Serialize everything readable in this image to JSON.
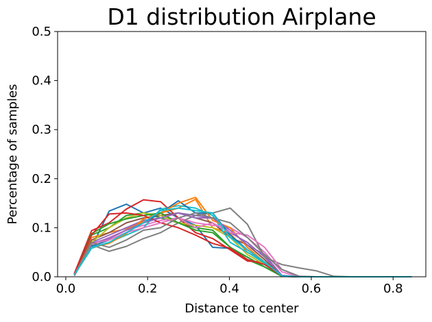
{
  "chart_data": {
    "type": "line",
    "title": "D1 distribution Airplane",
    "xlabel": "Distance to center",
    "ylabel": "Percentage of samples",
    "xlim": [
      -0.02,
      0.88
    ],
    "ylim": [
      0,
      0.5
    ],
    "xticks": [
      0.0,
      0.2,
      0.4,
      0.6,
      0.8
    ],
    "xtick_labels": [
      "0.0",
      "0.2",
      "0.4",
      "0.6",
      "0.8"
    ],
    "yticks": [
      0.0,
      0.1,
      0.2,
      0.3,
      0.4,
      0.5
    ],
    "ytick_labels": [
      "0.0",
      "0.1",
      "0.2",
      "0.3",
      "0.4",
      "0.5"
    ],
    "grid": false,
    "legend": false,
    "x": [
      0.021,
      0.063,
      0.106,
      0.148,
      0.19,
      0.232,
      0.275,
      0.317,
      0.359,
      0.402,
      0.444,
      0.486,
      0.528,
      0.571,
      0.613,
      0.655,
      0.697,
      0.74,
      0.782,
      0.824,
      0.845
    ],
    "series": [
      {
        "color": "#1f77b4",
        "values": [
          0.005,
          0.06,
          0.134,
          0.148,
          0.13,
          0.14,
          0.12,
          0.105,
          0.06,
          0.058,
          0.04,
          0.02,
          0.002,
          0,
          0,
          0,
          0,
          0,
          0,
          0,
          0
        ]
      },
      {
        "color": "#ff7f0e",
        "values": [
          0.004,
          0.08,
          0.09,
          0.098,
          0.112,
          0.13,
          0.14,
          0.158,
          0.1,
          0.088,
          0.05,
          0.03,
          0.002,
          0,
          0,
          0,
          0,
          0,
          0,
          0,
          0
        ]
      },
      {
        "color": "#2ca02c",
        "values": [
          0.006,
          0.085,
          0.1,
          0.125,
          0.13,
          0.12,
          0.11,
          0.1,
          0.095,
          0.06,
          0.035,
          0.02,
          0.001,
          0,
          0,
          0,
          0,
          0,
          0,
          0,
          0
        ]
      },
      {
        "color": "#d62728",
        "values": [
          0.007,
          0.094,
          0.11,
          0.138,
          0.157,
          0.153,
          0.12,
          0.09,
          0.078,
          0.055,
          0.032,
          0.03,
          0.002,
          0,
          0,
          0,
          0,
          0,
          0,
          0,
          0
        ]
      },
      {
        "color": "#9467bd",
        "values": [
          0.003,
          0.07,
          0.085,
          0.1,
          0.115,
          0.12,
          0.13,
          0.125,
          0.12,
          0.09,
          0.07,
          0.04,
          0.003,
          0,
          0,
          0,
          0,
          0,
          0,
          0,
          0
        ]
      },
      {
        "color": "#8c564b",
        "values": [
          0.003,
          0.075,
          0.09,
          0.11,
          0.12,
          0.125,
          0.13,
          0.12,
          0.11,
          0.08,
          0.065,
          0.035,
          0.002,
          0,
          0,
          0,
          0,
          0,
          0,
          0,
          0
        ]
      },
      {
        "color": "#e377c2",
        "values": [
          0.004,
          0.065,
          0.08,
          0.095,
          0.105,
          0.115,
          0.12,
          0.11,
          0.105,
          0.1,
          0.08,
          0.05,
          0.01,
          0,
          0,
          0,
          0,
          0,
          0,
          0,
          0
        ]
      },
      {
        "color": "#7f7f7f",
        "values": [
          0.002,
          0.065,
          0.052,
          0.062,
          0.078,
          0.09,
          0.11,
          0.125,
          0.13,
          0.14,
          0.107,
          0.04,
          0.025,
          0.018,
          0.012,
          0.001,
          0,
          0,
          0,
          0,
          0
        ]
      },
      {
        "color": "#bcbd22",
        "values": [
          0.005,
          0.07,
          0.1,
          0.12,
          0.13,
          0.125,
          0.11,
          0.105,
          0.1,
          0.08,
          0.045,
          0.025,
          0.002,
          0,
          0,
          0,
          0,
          0,
          0,
          0,
          0
        ]
      },
      {
        "color": "#17becf",
        "values": [
          0.004,
          0.058,
          0.07,
          0.085,
          0.1,
          0.138,
          0.145,
          0.14,
          0.125,
          0.07,
          0.05,
          0.028,
          0.001,
          0,
          0,
          0,
          0,
          0,
          0,
          0,
          0
        ]
      },
      {
        "color": "#1f77b4",
        "values": [
          0.005,
          0.062,
          0.075,
          0.09,
          0.11,
          0.13,
          0.155,
          0.13,
          0.13,
          0.085,
          0.055,
          0.03,
          0.001,
          0,
          0,
          0,
          0,
          0,
          0,
          0,
          0
        ]
      },
      {
        "color": "#ff7f0e",
        "values": [
          0.004,
          0.06,
          0.068,
          0.088,
          0.118,
          0.13,
          0.15,
          0.162,
          0.115,
          0.1,
          0.06,
          0.03,
          0.002,
          0,
          0,
          0,
          0,
          0,
          0,
          0,
          0
        ]
      },
      {
        "color": "#2ca02c",
        "values": [
          0.005,
          0.088,
          0.108,
          0.118,
          0.125,
          0.13,
          0.11,
          0.095,
          0.09,
          0.06,
          0.04,
          0.02,
          0.001,
          0,
          0,
          0,
          0,
          0,
          0,
          0,
          0
        ]
      },
      {
        "color": "#d62728",
        "values": [
          0.006,
          0.085,
          0.128,
          0.13,
          0.125,
          0.11,
          0.1,
          0.085,
          0.068,
          0.058,
          0.035,
          0.025,
          0.002,
          0,
          0,
          0,
          0,
          0,
          0,
          0,
          0
        ]
      },
      {
        "color": "#9467bd",
        "values": [
          0.003,
          0.068,
          0.078,
          0.095,
          0.11,
          0.12,
          0.13,
          0.12,
          0.12,
          0.095,
          0.065,
          0.045,
          0.003,
          0,
          0,
          0,
          0,
          0,
          0,
          0,
          0
        ]
      },
      {
        "color": "#e377c2",
        "values": [
          0.004,
          0.068,
          0.075,
          0.09,
          0.1,
          0.11,
          0.12,
          0.1,
          0.11,
          0.09,
          0.085,
          0.06,
          0.015,
          0.001,
          0,
          0,
          0,
          0,
          0,
          0,
          0
        ]
      },
      {
        "color": "#7f7f7f",
        "values": [
          0.003,
          0.07,
          0.06,
          0.075,
          0.095,
          0.1,
          0.12,
          0.13,
          0.12,
          0.11,
          0.08,
          0.045,
          0.015,
          0.001,
          0,
          0,
          0,
          0,
          0,
          0,
          0
        ]
      },
      {
        "color": "#17becf",
        "values": [
          0.004,
          0.06,
          0.07,
          0.09,
          0.11,
          0.135,
          0.14,
          0.135,
          0.13,
          0.08,
          0.055,
          0.03,
          0.002,
          0,
          0,
          0,
          0,
          0,
          0,
          0,
          0
        ]
      }
    ]
  }
}
